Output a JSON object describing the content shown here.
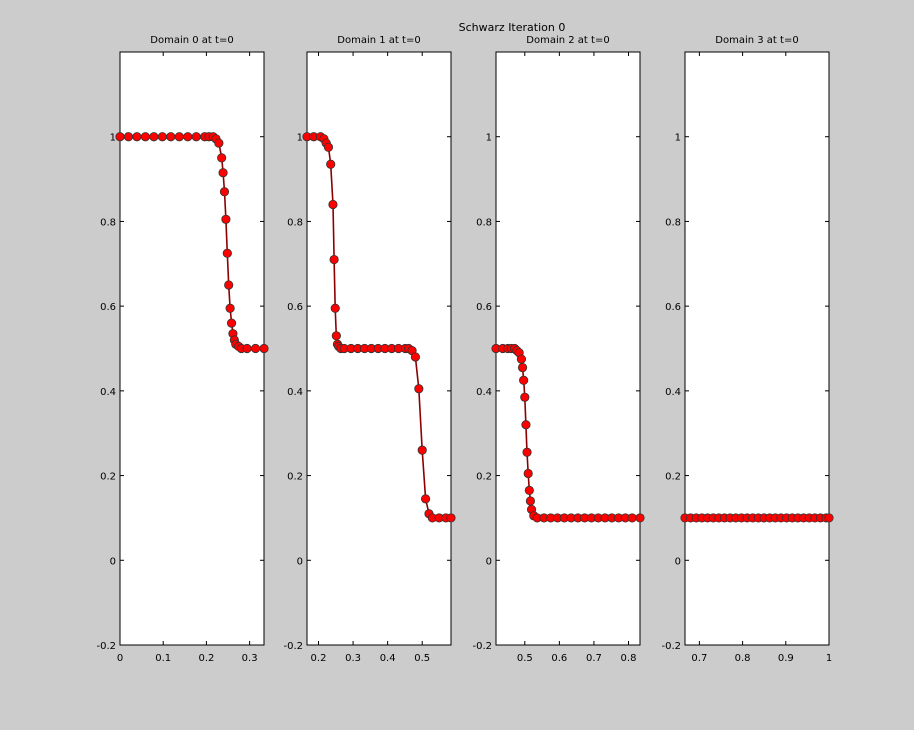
{
  "figure": {
    "suptitle": "Schwarz Iteration 0",
    "background": "#cccccc"
  },
  "style": {
    "line_color": "#8b0000",
    "marker_fill": "#ff0000",
    "marker_edge": "#333333"
  },
  "chart_data": [
    {
      "type": "line",
      "title": "Domain 0 at t=0",
      "xlim": [
        0,
        0.3333
      ],
      "ylim": [
        -0.2,
        1.2
      ],
      "xticks": [
        0,
        0.1,
        0.2,
        0.3
      ],
      "xtick_labels": [
        "0",
        "0.1",
        "0.2",
        "0.3"
      ],
      "yticks": [
        -0.2,
        0,
        0.2,
        0.4,
        0.6,
        0.8,
        1
      ],
      "ytick_labels": [
        "-0.2",
        "0",
        "0.2",
        "0.4",
        "0.6",
        "0.8",
        "1"
      ],
      "x": [
        0,
        0.0196,
        0.0392,
        0.0588,
        0.0784,
        0.098,
        0.1176,
        0.1373,
        0.1569,
        0.1765,
        0.1961,
        0.2059,
        0.2157,
        0.2222,
        0.2288,
        0.2353,
        0.2386,
        0.2418,
        0.2451,
        0.2484,
        0.2516,
        0.2549,
        0.2582,
        0.2614,
        0.2647,
        0.268,
        0.2745,
        0.281,
        0.2941,
        0.3137,
        0.3333
      ],
      "y": [
        1,
        1,
        1,
        1,
        1,
        1,
        1,
        1,
        1,
        1,
        1,
        1,
        1,
        0.995,
        0.985,
        0.95,
        0.915,
        0.87,
        0.805,
        0.725,
        0.65,
        0.595,
        0.56,
        0.535,
        0.52,
        0.51,
        0.505,
        0.5,
        0.5,
        0.5,
        0.5
      ]
    },
    {
      "type": "line",
      "title": "Domain 1 at t=0",
      "xlim": [
        0.1667,
        0.5833
      ],
      "ylim": [
        -0.2,
        1.2
      ],
      "xticks": [
        0.2,
        0.3,
        0.4,
        0.5
      ],
      "xtick_labels": [
        "0.2",
        "0.3",
        "0.4",
        "0.5"
      ],
      "yticks": [
        -0.2,
        0,
        0.2,
        0.4,
        0.6,
        0.8,
        1
      ],
      "ytick_labels": [
        "-0.2",
        "0",
        "0.2",
        "0.4",
        "0.6",
        "0.8",
        "1"
      ],
      "x": [
        0.1667,
        0.1863,
        0.2059,
        0.2157,
        0.2222,
        0.2288,
        0.2353,
        0.2418,
        0.2451,
        0.2484,
        0.2516,
        0.2549,
        0.2582,
        0.2647,
        0.2745,
        0.2941,
        0.3137,
        0.3333,
        0.3529,
        0.3725,
        0.3922,
        0.4118,
        0.4314,
        0.451,
        0.4608,
        0.4706,
        0.4804,
        0.4902,
        0.5,
        0.5098,
        0.5196,
        0.5294,
        0.549,
        0.5686,
        0.5833
      ],
      "y": [
        1,
        1,
        1,
        0.995,
        0.985,
        0.975,
        0.935,
        0.84,
        0.71,
        0.595,
        0.53,
        0.51,
        0.505,
        0.5,
        0.5,
        0.5,
        0.5,
        0.5,
        0.5,
        0.5,
        0.5,
        0.5,
        0.5,
        0.5,
        0.5,
        0.495,
        0.48,
        0.405,
        0.26,
        0.145,
        0.11,
        0.1,
        0.1,
        0.1,
        0.1
      ]
    },
    {
      "type": "line",
      "title": "Domain 2 at t=0",
      "xlim": [
        0.4167,
        0.8333
      ],
      "ylim": [
        -0.2,
        1.2
      ],
      "xticks": [
        0.5,
        0.6,
        0.7,
        0.8
      ],
      "xtick_labels": [
        "0.5",
        "0.6",
        "0.7",
        "0.8"
      ],
      "yticks": [
        -0.2,
        0,
        0.2,
        0.4,
        0.6,
        0.8,
        1
      ],
      "ytick_labels": [
        "-0.2",
        "0",
        "0.2",
        "0.4",
        "0.6",
        "0.8",
        "1"
      ],
      "x": [
        0.4167,
        0.4363,
        0.451,
        0.4608,
        0.4706,
        0.4771,
        0.4837,
        0.4902,
        0.4935,
        0.4967,
        0.5,
        0.5033,
        0.5065,
        0.5098,
        0.5131,
        0.5163,
        0.5196,
        0.5261,
        0.5359,
        0.5556,
        0.5752,
        0.5948,
        0.6144,
        0.6341,
        0.6537,
        0.6733,
        0.6929,
        0.7125,
        0.7322,
        0.7518,
        0.7714,
        0.791,
        0.8106,
        0.8333
      ],
      "y": [
        0.5,
        0.5,
        0.5,
        0.5,
        0.5,
        0.495,
        0.49,
        0.475,
        0.455,
        0.425,
        0.385,
        0.32,
        0.255,
        0.205,
        0.165,
        0.14,
        0.12,
        0.105,
        0.1,
        0.1,
        0.1,
        0.1,
        0.1,
        0.1,
        0.1,
        0.1,
        0.1,
        0.1,
        0.1,
        0.1,
        0.1,
        0.1,
        0.1,
        0.1
      ]
    },
    {
      "type": "line",
      "title": "Domain 3 at t=0",
      "xlim": [
        0.6667,
        1.0
      ],
      "ylim": [
        -0.2,
        1.2
      ],
      "xticks": [
        0.7,
        0.8,
        0.9,
        1.0
      ],
      "xtick_labels": [
        "0.7",
        "0.8",
        "0.9",
        "1"
      ],
      "yticks": [
        -0.2,
        0,
        0.2,
        0.4,
        0.6,
        0.8,
        1
      ],
      "ytick_labels": [
        "-0.2",
        "0",
        "0.2",
        "0.4",
        "0.6",
        "0.8",
        "1"
      ],
      "x": [
        0.6667,
        0.6797,
        0.6928,
        0.7059,
        0.719,
        0.732,
        0.7451,
        0.7582,
        0.7712,
        0.7843,
        0.7974,
        0.8105,
        0.8235,
        0.8366,
        0.8497,
        0.8627,
        0.8758,
        0.8889,
        0.902,
        0.915,
        0.9281,
        0.9412,
        0.9542,
        0.9673,
        0.9804,
        0.9935,
        1.0
      ],
      "y": [
        0.1,
        0.1,
        0.1,
        0.1,
        0.1,
        0.1,
        0.1,
        0.1,
        0.1,
        0.1,
        0.1,
        0.1,
        0.1,
        0.1,
        0.1,
        0.1,
        0.1,
        0.1,
        0.1,
        0.1,
        0.1,
        0.1,
        0.1,
        0.1,
        0.1,
        0.1,
        0.1
      ]
    }
  ]
}
